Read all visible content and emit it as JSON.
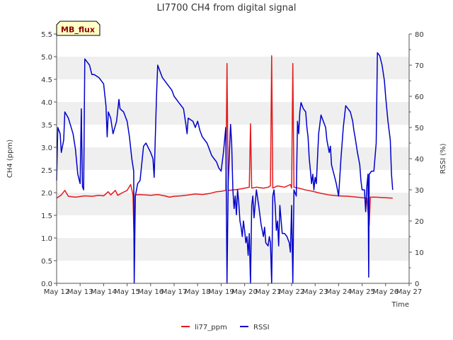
{
  "chart_data": {
    "type": "line",
    "title": "LI7700 CH4 from digital signal",
    "xlabel": "Time",
    "ylabel": "CH4 (ppm)",
    "y2label": "RSSI (%)",
    "site_badge": "MB_flux",
    "x_ticks": [
      "May 12",
      "May 13",
      "May 14",
      "May 15",
      "May 16",
      "May 17",
      "May 18",
      "May 19",
      "May 20",
      "May 21",
      "May 22",
      "May 23",
      "May 24",
      "May 25",
      "May 26",
      "May 27"
    ],
    "y_ticks": [
      "0.0",
      "0.5",
      "1.0",
      "1.5",
      "2.0",
      "2.5",
      "3.0",
      "3.5",
      "4.0",
      "4.5",
      "5.0",
      "5.5"
    ],
    "y2_ticks": [
      "0",
      "10",
      "20",
      "30",
      "40",
      "50",
      "60",
      "70",
      "80"
    ],
    "xlim": [
      0,
      15
    ],
    "ylim": [
      0,
      5.5
    ],
    "y2lim": [
      0,
      80
    ],
    "grid": "alternating horizontal bands",
    "legend_position": "bottom-center",
    "series": [
      {
        "name": "li77_ppm",
        "axis": "left",
        "color": "#e31a1c",
        "points": [
          [
            0.0,
            1.88
          ],
          [
            0.2,
            1.95
          ],
          [
            0.35,
            2.05
          ],
          [
            0.5,
            1.92
          ],
          [
            0.8,
            1.9
          ],
          [
            1.2,
            1.93
          ],
          [
            1.5,
            1.92
          ],
          [
            1.8,
            1.94
          ],
          [
            2.0,
            1.93
          ],
          [
            2.2,
            2.02
          ],
          [
            2.3,
            1.95
          ],
          [
            2.5,
            2.05
          ],
          [
            2.6,
            1.94
          ],
          [
            2.8,
            2.0
          ],
          [
            3.0,
            2.05
          ],
          [
            3.15,
            2.18
          ],
          [
            3.25,
            1.95
          ],
          [
            3.3,
            0.85
          ],
          [
            3.35,
            1.95
          ],
          [
            3.5,
            1.96
          ],
          [
            3.8,
            1.95
          ],
          [
            4.0,
            1.94
          ],
          [
            4.3,
            1.96
          ],
          [
            4.6,
            1.93
          ],
          [
            4.8,
            1.9
          ],
          [
            5.0,
            1.92
          ],
          [
            5.3,
            1.93
          ],
          [
            5.6,
            1.95
          ],
          [
            5.9,
            1.97
          ],
          [
            6.2,
            1.96
          ],
          [
            6.5,
            1.98
          ],
          [
            6.8,
            2.02
          ],
          [
            7.0,
            2.03
          ],
          [
            7.2,
            2.05
          ],
          [
            7.25,
            4.85
          ],
          [
            7.3,
            2.05
          ],
          [
            7.5,
            2.06
          ],
          [
            7.8,
            2.08
          ],
          [
            8.0,
            2.1
          ],
          [
            8.2,
            2.12
          ],
          [
            8.25,
            3.52
          ],
          [
            8.3,
            2.1
          ],
          [
            8.5,
            2.12
          ],
          [
            8.8,
            2.1
          ],
          [
            9.0,
            2.12
          ],
          [
            9.1,
            2.15
          ],
          [
            9.15,
            5.02
          ],
          [
            9.2,
            2.1
          ],
          [
            9.4,
            2.15
          ],
          [
            9.7,
            2.12
          ],
          [
            9.95,
            2.18
          ],
          [
            10.0,
            2.1
          ],
          [
            10.05,
            4.85
          ],
          [
            10.1,
            2.12
          ],
          [
            10.3,
            2.1
          ],
          [
            10.6,
            2.06
          ],
          [
            10.9,
            2.03
          ],
          [
            11.2,
            1.99
          ],
          [
            11.6,
            1.95
          ],
          [
            12.0,
            1.93
          ],
          [
            12.4,
            1.92
          ],
          [
            12.8,
            1.9
          ],
          [
            13.2,
            1.88
          ],
          [
            13.3,
            1.28
          ],
          [
            13.35,
            1.9
          ],
          [
            13.6,
            1.9
          ],
          [
            13.9,
            1.89
          ],
          [
            14.3,
            1.88
          ]
        ]
      },
      {
        "name": "RSSI",
        "axis": "right",
        "color": "#0000cc",
        "points": [
          [
            0.0,
            33
          ],
          [
            0.05,
            50
          ],
          [
            0.15,
            48
          ],
          [
            0.2,
            42
          ],
          [
            0.3,
            46
          ],
          [
            0.35,
            55
          ],
          [
            0.5,
            53
          ],
          [
            0.7,
            48
          ],
          [
            0.8,
            43
          ],
          [
            0.9,
            35
          ],
          [
            1.0,
            32
          ],
          [
            1.05,
            56
          ],
          [
            1.1,
            31
          ],
          [
            1.15,
            30
          ],
          [
            1.2,
            72
          ],
          [
            1.3,
            71
          ],
          [
            1.4,
            70
          ],
          [
            1.5,
            67
          ],
          [
            1.6,
            67
          ],
          [
            1.8,
            66
          ],
          [
            2.0,
            64
          ],
          [
            2.1,
            57
          ],
          [
            2.15,
            47
          ],
          [
            2.2,
            55
          ],
          [
            2.3,
            53
          ],
          [
            2.4,
            48
          ],
          [
            2.55,
            52
          ],
          [
            2.65,
            59
          ],
          [
            2.7,
            56
          ],
          [
            2.85,
            55
          ],
          [
            3.0,
            52
          ],
          [
            3.1,
            47
          ],
          [
            3.2,
            40
          ],
          [
            3.28,
            36
          ],
          [
            3.3,
            0
          ],
          [
            3.35,
            28
          ],
          [
            3.45,
            32
          ],
          [
            3.55,
            33
          ],
          [
            3.7,
            44
          ],
          [
            3.8,
            45
          ],
          [
            4.0,
            42
          ],
          [
            4.1,
            40
          ],
          [
            4.15,
            34
          ],
          [
            4.25,
            60
          ],
          [
            4.3,
            70
          ],
          [
            4.4,
            68
          ],
          [
            4.5,
            66
          ],
          [
            4.7,
            64
          ],
          [
            4.9,
            62
          ],
          [
            5.0,
            60
          ],
          [
            5.2,
            58
          ],
          [
            5.4,
            56
          ],
          [
            5.5,
            51
          ],
          [
            5.55,
            48
          ],
          [
            5.6,
            53
          ],
          [
            5.8,
            52
          ],
          [
            5.9,
            50
          ],
          [
            6.0,
            52
          ],
          [
            6.1,
            49
          ],
          [
            6.2,
            47
          ],
          [
            6.4,
            45
          ],
          [
            6.5,
            43
          ],
          [
            6.6,
            41
          ],
          [
            6.7,
            40
          ],
          [
            6.8,
            39
          ],
          [
            6.9,
            37
          ],
          [
            7.0,
            36
          ],
          [
            7.1,
            42
          ],
          [
            7.2,
            50
          ],
          [
            7.25,
            0
          ],
          [
            7.3,
            32
          ],
          [
            7.4,
            51
          ],
          [
            7.45,
            45
          ],
          [
            7.5,
            30
          ],
          [
            7.55,
            24
          ],
          [
            7.6,
            28
          ],
          [
            7.65,
            22
          ],
          [
            7.7,
            30
          ],
          [
            7.75,
            26
          ],
          [
            7.8,
            20
          ],
          [
            7.85,
            18
          ],
          [
            7.9,
            15
          ],
          [
            7.95,
            20
          ],
          [
            8.0,
            17
          ],
          [
            8.05,
            13
          ],
          [
            8.1,
            15
          ],
          [
            8.15,
            9
          ],
          [
            8.2,
            16
          ],
          [
            8.25,
            0
          ],
          [
            8.3,
            25
          ],
          [
            8.35,
            28
          ],
          [
            8.4,
            21
          ],
          [
            8.5,
            30
          ],
          [
            8.6,
            25
          ],
          [
            8.7,
            19
          ],
          [
            8.8,
            15
          ],
          [
            8.85,
            18
          ],
          [
            8.9,
            13
          ],
          [
            9.0,
            12
          ],
          [
            9.05,
            15
          ],
          [
            9.1,
            13
          ],
          [
            9.15,
            0
          ],
          [
            9.2,
            28
          ],
          [
            9.25,
            30
          ],
          [
            9.3,
            25
          ],
          [
            9.35,
            17
          ],
          [
            9.4,
            20
          ],
          [
            9.45,
            12
          ],
          [
            9.5,
            25
          ],
          [
            9.6,
            16
          ],
          [
            9.7,
            16
          ],
          [
            9.8,
            15
          ],
          [
            9.85,
            14
          ],
          [
            9.9,
            13
          ],
          [
            9.95,
            10
          ],
          [
            10.0,
            25
          ],
          [
            10.05,
            0
          ],
          [
            10.1,
            30
          ],
          [
            10.2,
            28
          ],
          [
            10.25,
            52
          ],
          [
            10.3,
            48
          ],
          [
            10.35,
            55
          ],
          [
            10.4,
            58
          ],
          [
            10.5,
            56
          ],
          [
            10.6,
            55
          ],
          [
            10.65,
            50
          ],
          [
            10.7,
            47
          ],
          [
            10.75,
            40
          ],
          [
            10.8,
            36
          ],
          [
            10.85,
            32
          ],
          [
            10.9,
            35
          ],
          [
            10.95,
            30
          ],
          [
            11.0,
            34
          ],
          [
            11.05,
            32
          ],
          [
            11.15,
            48
          ],
          [
            11.25,
            54
          ],
          [
            11.35,
            52
          ],
          [
            11.45,
            50
          ],
          [
            11.5,
            46
          ],
          [
            11.6,
            42
          ],
          [
            11.65,
            44
          ],
          [
            11.7,
            38
          ],
          [
            11.8,
            35
          ],
          [
            11.9,
            32
          ],
          [
            12.0,
            28
          ],
          [
            12.1,
            40
          ],
          [
            12.2,
            50
          ],
          [
            12.3,
            57
          ],
          [
            12.4,
            56
          ],
          [
            12.5,
            55
          ],
          [
            12.6,
            52
          ],
          [
            12.65,
            49
          ],
          [
            12.7,
            47
          ],
          [
            12.8,
            42
          ],
          [
            12.9,
            38
          ],
          [
            12.95,
            33
          ],
          [
            13.0,
            30
          ],
          [
            13.1,
            30
          ],
          [
            13.15,
            23
          ],
          [
            13.2,
            31
          ],
          [
            13.25,
            35
          ],
          [
            13.28,
            2
          ],
          [
            13.3,
            35
          ],
          [
            13.4,
            36
          ],
          [
            13.5,
            36
          ],
          [
            13.6,
            45
          ],
          [
            13.65,
            74
          ],
          [
            13.75,
            73
          ],
          [
            13.85,
            70
          ],
          [
            13.95,
            65
          ],
          [
            14.0,
            60
          ],
          [
            14.1,
            52
          ],
          [
            14.2,
            46
          ],
          [
            14.25,
            35
          ],
          [
            14.3,
            30
          ]
        ]
      }
    ]
  }
}
